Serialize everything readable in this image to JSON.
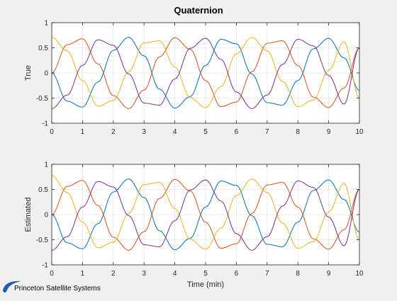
{
  "figure": {
    "title": "Quaternion",
    "xlabel": "Time (min)",
    "logo_text": "Princeton Satellite Systems",
    "colors": {
      "background": "#f0f0f0",
      "axes_background": "#ffffff",
      "grid": "#e6e6e6",
      "axis": "#262626",
      "logo_blue": "#1f5fa8"
    }
  },
  "chart_data": [
    {
      "type": "line",
      "title": "Quaternion",
      "xlabel": "",
      "ylabel": "True",
      "xlim": [
        0,
        10
      ],
      "ylim": [
        -1,
        1
      ],
      "xticks": [
        0,
        1,
        2,
        3,
        4,
        5,
        6,
        7,
        8,
        9,
        10
      ],
      "yticks": [
        -1,
        -0.5,
        0,
        0.5,
        1
      ],
      "ytick_labels": [
        "-1",
        "-0.5",
        "0",
        "0.5",
        "1"
      ],
      "grid": true,
      "series": [
        {
          "color": "#0072bd",
          "x": [
            0,
            0.5,
            1,
            1.5,
            2,
            2.5,
            3,
            3.5,
            4,
            4.5,
            5,
            5.5,
            6,
            6.5,
            7,
            7.5,
            8,
            8.5,
            9,
            9.5,
            10
          ],
          "y": [
            0,
            -0.56,
            -0.68,
            -0.18,
            0.45,
            0.71,
            0.34,
            -0.32,
            -0.7,
            -0.47,
            0.15,
            0.67,
            0.58,
            -0.02,
            -0.59,
            -0.64,
            -0.15,
            0.48,
            0.69,
            0.3,
            -0.35
          ]
        },
        {
          "color": "#d95319",
          "x": [
            0,
            0.5,
            1,
            1.5,
            2,
            2.5,
            3,
            3.5,
            4,
            4.5,
            5,
            5.5,
            6,
            6.5,
            7,
            7.5,
            8,
            8.5,
            9,
            9.5,
            10
          ],
          "y": [
            0,
            0.56,
            0.68,
            0.18,
            -0.45,
            -0.71,
            -0.34,
            0.32,
            0.7,
            0.47,
            -0.15,
            -0.67,
            -0.58,
            0.02,
            0.59,
            0.64,
            0.15,
            -0.48,
            -0.69,
            -0.3,
            0.5
          ]
        },
        {
          "color": "#edb120",
          "x": [
            0,
            0.5,
            1,
            1.5,
            2,
            2.5,
            3,
            3.5,
            4,
            4.5,
            5,
            5.5,
            6,
            6.5,
            7,
            7.5,
            8,
            8.5,
            9,
            9.5,
            10
          ],
          "y": [
            0.71,
            0.44,
            -0.15,
            -0.66,
            -0.55,
            0.02,
            0.6,
            0.64,
            0.12,
            -0.49,
            -0.69,
            -0.27,
            0.38,
            0.71,
            0.44,
            -0.17,
            -0.67,
            -0.54,
            0.05,
            0.62,
            -0.5
          ]
        },
        {
          "color": "#7e2f8e",
          "x": [
            0,
            0.5,
            1,
            1.5,
            2,
            2.5,
            3,
            3.5,
            4,
            4.5,
            5,
            5.5,
            6,
            6.5,
            7,
            7.5,
            8,
            8.5,
            9,
            9.5,
            10
          ],
          "y": [
            -0.71,
            -0.44,
            0.15,
            0.66,
            0.55,
            -0.02,
            -0.6,
            -0.64,
            -0.12,
            0.49,
            0.69,
            0.27,
            -0.38,
            -0.71,
            -0.44,
            0.17,
            0.67,
            0.54,
            -0.05,
            -0.62,
            0.5
          ]
        }
      ]
    },
    {
      "type": "line",
      "title": "",
      "xlabel": "Time (min)",
      "ylabel": "Estimated",
      "xlim": [
        0,
        10
      ],
      "ylim": [
        -1,
        1
      ],
      "xticks": [
        0,
        1,
        2,
        3,
        4,
        5,
        6,
        7,
        8,
        9,
        10
      ],
      "yticks": [
        -1,
        -0.5,
        0,
        0.5,
        1
      ],
      "ytick_labels": [
        "-1",
        "-0.5",
        "0",
        "0.5",
        "1"
      ],
      "grid": true,
      "series": [
        {
          "color": "#0072bd",
          "x": [
            0,
            0.5,
            1,
            1.5,
            2,
            2.5,
            3,
            3.5,
            4,
            4.5,
            5,
            5.5,
            6,
            6.5,
            7,
            7.5,
            8,
            8.5,
            9,
            9.5,
            10
          ],
          "y": [
            0,
            -0.56,
            -0.68,
            -0.18,
            0.45,
            0.71,
            0.34,
            -0.32,
            -0.7,
            -0.47,
            0.15,
            0.67,
            0.58,
            -0.02,
            -0.59,
            -0.64,
            -0.15,
            0.48,
            0.69,
            0.3,
            -0.35
          ]
        },
        {
          "color": "#d95319",
          "x": [
            0,
            0.5,
            1,
            1.5,
            2,
            2.5,
            3,
            3.5,
            4,
            4.5,
            5,
            5.5,
            6,
            6.5,
            7,
            7.5,
            8,
            8.5,
            9,
            9.5,
            10
          ],
          "y": [
            0,
            0.56,
            0.68,
            0.18,
            -0.45,
            -0.71,
            -0.34,
            0.32,
            0.7,
            0.47,
            -0.15,
            -0.67,
            -0.58,
            0.02,
            0.59,
            0.64,
            0.15,
            -0.48,
            -0.69,
            -0.3,
            0.5
          ]
        },
        {
          "color": "#edb120",
          "x": [
            0,
            0.5,
            1,
            1.5,
            2,
            2.5,
            3,
            3.5,
            4,
            4.5,
            5,
            5.5,
            6,
            6.5,
            7,
            7.5,
            8,
            8.5,
            9,
            9.5,
            10
          ],
          "y": [
            0.78,
            0.44,
            -0.15,
            -0.66,
            -0.55,
            0.02,
            0.6,
            0.64,
            0.12,
            -0.49,
            -0.69,
            -0.27,
            0.38,
            0.71,
            0.44,
            -0.17,
            -0.67,
            -0.54,
            0.05,
            0.62,
            -0.5
          ]
        },
        {
          "color": "#7e2f8e",
          "x": [
            0,
            0.5,
            1,
            1.5,
            2,
            2.5,
            3,
            3.5,
            4,
            4.5,
            5,
            5.5,
            6,
            6.5,
            7,
            7.5,
            8,
            8.5,
            9,
            9.5,
            10
          ],
          "y": [
            -0.71,
            -0.44,
            0.15,
            0.66,
            0.55,
            -0.02,
            -0.6,
            -0.64,
            -0.12,
            0.49,
            0.69,
            0.27,
            -0.38,
            -0.71,
            -0.44,
            0.17,
            0.67,
            0.54,
            -0.05,
            -0.62,
            0.5
          ]
        }
      ]
    }
  ]
}
